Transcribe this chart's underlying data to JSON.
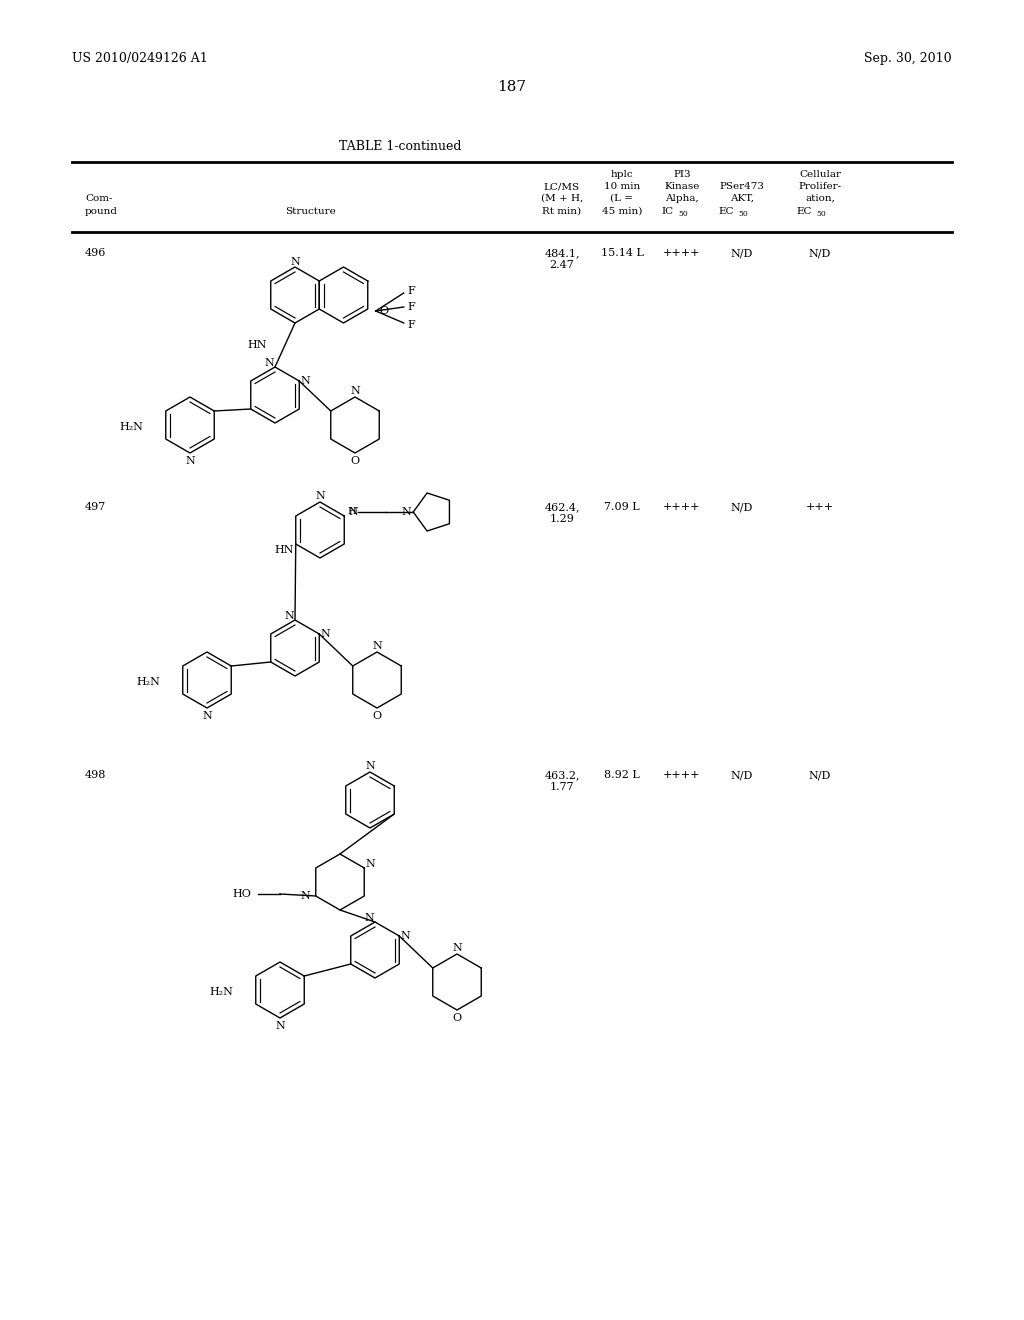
{
  "bg_color": "#ffffff",
  "header_left": "US 2010/0249126 A1",
  "header_right": "Sep. 30, 2010",
  "page_number": "187",
  "table_title": "TABLE 1-continued",
  "rows": [
    {
      "compound": "496",
      "lcms": "484.1,\n2.47",
      "hplc": "15.14 L",
      "pi3k": "++++",
      "pser": "N/D",
      "cellular": "N/D"
    },
    {
      "compound": "497",
      "lcms": "462.4,\n1.29",
      "hplc": "7.09 L",
      "pi3k": "++++",
      "pser": "N/D",
      "cellular": "+++"
    },
    {
      "compound": "498",
      "lcms": "463.2,\n1.77",
      "hplc": "8.92 L",
      "pi3k": "++++",
      "pser": "N/D",
      "cellular": "N/D"
    }
  ]
}
